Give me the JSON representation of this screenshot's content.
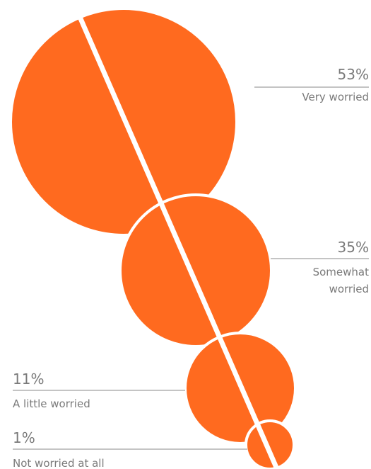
{
  "chart_data": {
    "type": "bubble",
    "title": "",
    "series_color": "#ff6a1f",
    "leader_color": "#c4c4c4",
    "separator_color": "#ffffff",
    "legend": "none",
    "grid": false,
    "items": [
      {
        "value": 53,
        "value_label": "53%",
        "label_lines": [
          "Very worried"
        ]
      },
      {
        "value": 35,
        "value_label": "35%",
        "label_lines": [
          "Somewhat",
          "worried"
        ]
      },
      {
        "value": 11,
        "value_label": "11%",
        "label_lines": [
          "A little worried"
        ]
      },
      {
        "value": 1,
        "value_label": "1%",
        "label_lines": [
          "Not worried at all"
        ]
      }
    ]
  }
}
